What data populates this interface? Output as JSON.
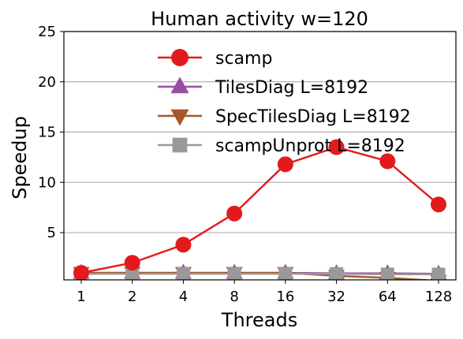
{
  "chart_data": {
    "type": "line",
    "title": "Human activity w=120",
    "xlabel": "Threads",
    "ylabel": "Speedup",
    "categories": [
      "1",
      "2",
      "4",
      "8",
      "16",
      "32",
      "64",
      "128"
    ],
    "ylim": [
      0.3,
      25
    ],
    "yticks": [
      "5",
      "10",
      "15",
      "20",
      "25"
    ],
    "grid": "horizontal",
    "legend_position": "upper-center",
    "series": [
      {
        "name": "scamp",
        "color": "#e31a1c",
        "marker": "circle",
        "values": [
          1.0,
          2.0,
          3.8,
          6.9,
          11.8,
          13.5,
          12.1,
          7.8
        ]
      },
      {
        "name": "TilesDiag L=8192",
        "color": "#984ea3",
        "marker": "triangle-up",
        "values": [
          1.0,
          1.0,
          1.0,
          1.0,
          1.0,
          0.95,
          0.95,
          0.9
        ]
      },
      {
        "name": "SpecTilesDiag L=8192",
        "color": "#a65628",
        "marker": "triangle-down",
        "values": [
          1.0,
          1.0,
          1.0,
          1.0,
          1.0,
          0.7,
          0.5,
          0.2
        ]
      },
      {
        "name": "scampUnprot L=8192",
        "color": "#999999",
        "marker": "square",
        "values": [
          0.9,
          0.9,
          0.9,
          0.9,
          0.9,
          0.9,
          0.85,
          0.85
        ]
      }
    ]
  }
}
